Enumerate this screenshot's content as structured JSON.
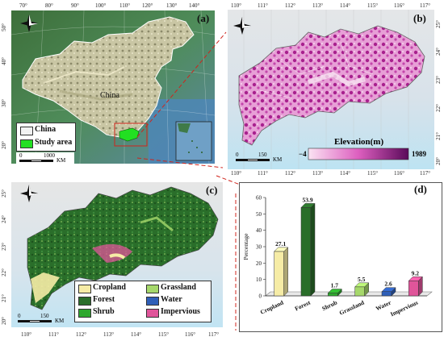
{
  "panel_a": {
    "letter": "(a)",
    "country_label": "China",
    "x_ticks": [
      "70°",
      "80°",
      "90°",
      "100°",
      "110°",
      "120°",
      "130°",
      "140°"
    ],
    "y_ticks": [
      "50°",
      "40°",
      "30°",
      "20°"
    ],
    "legend": [
      {
        "label": "China",
        "color": "#f2f2f2"
      },
      {
        "label": "Study area",
        "color": "#22e022"
      }
    ],
    "scale": {
      "zero": "0",
      "value": "1000",
      "unit": "KM"
    },
    "compass": "N"
  },
  "panel_b": {
    "letter": "(b)",
    "x_ticks": [
      "110°",
      "111°",
      "112°",
      "113°",
      "114°",
      "115°",
      "116°",
      "117°"
    ],
    "x_ticks_bottom": [
      "110°",
      "111°",
      "112°",
      "113°",
      "114°",
      "115°",
      "116°",
      "117°"
    ],
    "y_ticks": [
      "25°",
      "24°",
      "23°",
      "22°",
      "21°",
      "20°"
    ],
    "elevation_title": "Elevation(m)",
    "elevation_min": "−4",
    "elevation_max": "1989",
    "scale": {
      "zero": "0",
      "value": "150",
      "unit": "KM"
    },
    "compass": "N"
  },
  "panel_c": {
    "letter": "(c)",
    "x_ticks": [
      "110°",
      "111°",
      "112°",
      "113°",
      "114°",
      "115°",
      "116°",
      "117°"
    ],
    "y_ticks": [
      "25°",
      "24°",
      "23°",
      "22°",
      "21°",
      "20°"
    ],
    "legend": [
      {
        "label": "Cropland",
        "color": "#f6eca6"
      },
      {
        "label": "Grassland",
        "color": "#a6d86b"
      },
      {
        "label": "Forest",
        "color": "#2a6e2a"
      },
      {
        "label": "Water",
        "color": "#2f5fb8"
      },
      {
        "label": "Shrub",
        "color": "#2ea82e"
      },
      {
        "label": "Impervious",
        "color": "#e0559a"
      }
    ],
    "scale": {
      "zero": "0",
      "value": "150",
      "unit": "KM"
    },
    "compass": "N"
  },
  "panel_d": {
    "letter": "(d)"
  },
  "chart_data": {
    "type": "bar",
    "categories": [
      "Cropland",
      "Forest",
      "Shrub",
      "Grassland",
      "Water",
      "Impervious"
    ],
    "values": [
      27.1,
      53.9,
      1.7,
      5.5,
      2.6,
      9.2
    ],
    "value_labels": [
      "27.1",
      "53.9",
      "1.7",
      "5.5",
      "2.6",
      "9.2"
    ],
    "colors": [
      "#f6eca6",
      "#2a6e2a",
      "#2ea82e",
      "#a6d86b",
      "#2f5fb8",
      "#e0559a"
    ],
    "ylabel": "Percentage",
    "ylim": [
      0,
      60
    ],
    "yticks": [
      "0",
      "10",
      "20",
      "30",
      "40",
      "50",
      "60"
    ],
    "grid": false
  }
}
